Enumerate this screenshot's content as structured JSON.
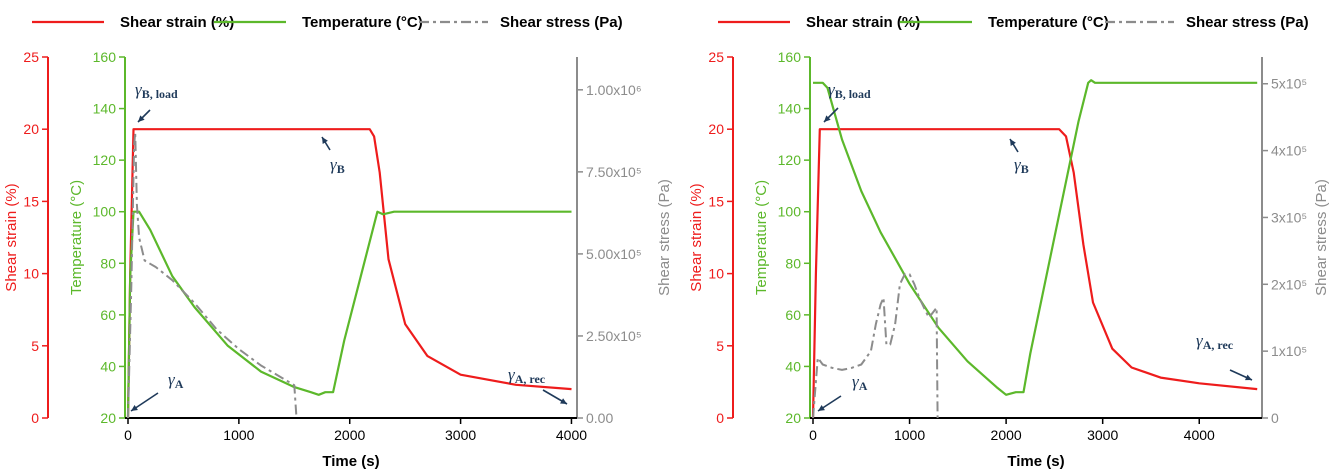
{
  "colors": {
    "strain": "#ee1c1c",
    "temperature": "#5cb82b",
    "stress": "#8c8c8c",
    "annotation": "#1f3a5a"
  },
  "chart_data": [
    {
      "type": "line",
      "legend_position": "top",
      "grid": false,
      "legend": [
        "Shear strain (%)",
        "Temperature (°C)",
        "Shear stress (Pa)"
      ],
      "xlabel": "Time (s)",
      "xlim": [
        0,
        4050
      ],
      "x_ticks": [
        "0",
        "1000",
        "2000",
        "3000",
        "4000"
      ],
      "x_tick_values": [
        0,
        1000,
        2000,
        3000,
        4000
      ],
      "axes": {
        "strain": {
          "label": "Shear strain (%)",
          "lim": [
            0,
            25
          ],
          "ticks": [
            "0",
            "5",
            "10",
            "15",
            "20",
            "25"
          ],
          "tick_values": [
            0,
            5,
            10,
            15,
            20,
            25
          ]
        },
        "temperature": {
          "label": "Temperature (°C)",
          "lim": [
            20,
            160
          ],
          "ticks": [
            "20",
            "40",
            "60",
            "80",
            "100",
            "120",
            "140",
            "160"
          ],
          "tick_values": [
            20,
            40,
            60,
            80,
            100,
            120,
            140,
            160
          ]
        },
        "stress": {
          "label": "Shear stress (Pa)",
          "lim": [
            0,
            1100000
          ],
          "ticks": [
            "0.00",
            "2.50x10⁵",
            "5.00x10⁵",
            "7.50x10⁵",
            "1.00x10⁶"
          ],
          "tick_values": [
            0,
            250000,
            500000,
            750000,
            1000000
          ]
        }
      },
      "series": [
        {
          "name": "Shear strain (%)",
          "axis": "strain",
          "x": [
            0,
            20,
            50,
            80,
            500,
            1000,
            1500,
            2100,
            2180,
            2220,
            2270,
            2350,
            2500,
            2700,
            3000,
            3500,
            4000
          ],
          "values": [
            0,
            10,
            20,
            20,
            20,
            20,
            20,
            20,
            20,
            19.5,
            17,
            11,
            6.5,
            4.3,
            3,
            2.3,
            2
          ]
        },
        {
          "name": "Temperature (°C)",
          "axis": "temperature",
          "x": [
            0,
            20,
            50,
            100,
            200,
            400,
            600,
            900,
            1200,
            1500,
            1650,
            1720,
            1780,
            1850,
            1950,
            2100,
            2250,
            2300,
            2400,
            3000,
            4000
          ],
          "values": [
            20,
            75,
            100,
            100,
            93,
            75,
            63,
            48,
            38,
            32,
            30,
            29,
            30,
            30,
            50,
            75,
            100,
            99,
            100,
            100,
            100
          ]
        },
        {
          "name": "Shear stress (Pa)",
          "axis": "stress",
          "x": [
            0,
            30,
            55,
            65,
            80,
            100,
            150,
            200,
            250,
            400,
            600,
            800,
            1000,
            1200,
            1400,
            1500,
            1510,
            1520
          ],
          "values": [
            0,
            400000,
            830000,
            870000,
            650000,
            550000,
            480000,
            470000,
            460000,
            420000,
            350000,
            270000,
            210000,
            160000,
            120000,
            100000,
            50000,
            0
          ]
        }
      ],
      "annotations": [
        {
          "label": "γ",
          "sub": "B, load",
          "x": 70,
          "strain": 20
        },
        {
          "label": "γ",
          "sub": "B",
          "x": 1850,
          "strain": 20
        },
        {
          "label": "γ",
          "sub": "A",
          "x": 20,
          "strain": 0.5
        },
        {
          "label": "γ",
          "sub": "A, rec",
          "x": 3980,
          "strain": 2.1
        }
      ]
    },
    {
      "type": "line",
      "legend_position": "top",
      "grid": false,
      "legend": [
        "Shear strain (%)",
        "Temperature (°C)",
        "Shear stress (Pa)"
      ],
      "xlabel": "Time (s)",
      "xlim": [
        0,
        4650
      ],
      "x_ticks": [
        "0",
        "1000",
        "2000",
        "3000",
        "4000"
      ],
      "x_tick_values": [
        0,
        1000,
        2000,
        3000,
        4000
      ],
      "axes": {
        "strain": {
          "label": "Shear strain (%)",
          "lim": [
            0,
            25
          ],
          "ticks": [
            "0",
            "5",
            "10",
            "15",
            "20",
            "25"
          ],
          "tick_values": [
            0,
            5,
            10,
            15,
            20,
            25
          ]
        },
        "temperature": {
          "label": "Temperature (°C)",
          "lim": [
            20,
            160
          ],
          "ticks": [
            "20",
            "40",
            "60",
            "80",
            "100",
            "120",
            "140",
            "160"
          ],
          "tick_values": [
            20,
            40,
            60,
            80,
            100,
            120,
            140,
            160
          ]
        },
        "stress": {
          "label": "Shear stress (Pa)",
          "lim": [
            0,
            540000
          ],
          "ticks": [
            "0",
            "1x10⁵",
            "2x10⁵",
            "3x10⁵",
            "4x10⁵",
            "5x10⁵"
          ],
          "tick_values": [
            0,
            100000,
            200000,
            300000,
            400000,
            500000
          ]
        }
      },
      "series": [
        {
          "name": "Shear strain (%)",
          "axis": "strain",
          "x": [
            0,
            30,
            70,
            100,
            1000,
            2000,
            2550,
            2620,
            2700,
            2800,
            2900,
            3100,
            3300,
            3600,
            4000,
            4600
          ],
          "values": [
            0,
            10,
            20,
            20,
            20,
            20,
            20,
            19.5,
            17,
            12,
            8,
            4.8,
            3.5,
            2.8,
            2.4,
            2
          ]
        },
        {
          "name": "Temperature (°C)",
          "axis": "temperature",
          "x": [
            0,
            100,
            150,
            300,
            500,
            700,
            1000,
            1300,
            1600,
            1900,
            2000,
            2100,
            2180,
            2250,
            2500,
            2750,
            2850,
            2880,
            2920,
            3000,
            4600
          ],
          "values": [
            150,
            150,
            148,
            128,
            108,
            92,
            72,
            55,
            42,
            32,
            29,
            30,
            30,
            45,
            90,
            135,
            150,
            151,
            150,
            150,
            150
          ]
        },
        {
          "name": "Shear stress (Pa)",
          "axis": "stress",
          "x": [
            0,
            50,
            100,
            200,
            300,
            400,
            500,
            600,
            650,
            700,
            730,
            760,
            800,
            850,
            900,
            950,
            1000,
            1050,
            1100,
            1150,
            1200,
            1280,
            1285,
            1290
          ],
          "values": [
            0,
            90000,
            80000,
            75000,
            72000,
            75000,
            80000,
            100000,
            140000,
            170000,
            180000,
            110000,
            110000,
            140000,
            200000,
            215000,
            215000,
            200000,
            180000,
            165000,
            150000,
            165000,
            80000,
            0
          ]
        }
      ],
      "annotations": [
        {
          "label": "γ",
          "sub": "B, load",
          "x": 90,
          "strain": 20
        },
        {
          "label": "γ",
          "sub": "B",
          "x": 2100,
          "strain": 20
        },
        {
          "label": "γ",
          "sub": "A",
          "x": 30,
          "strain": 0.5
        },
        {
          "label": "γ",
          "sub": "A, rec",
          "x": 4580,
          "strain": 2.1
        }
      ]
    }
  ]
}
